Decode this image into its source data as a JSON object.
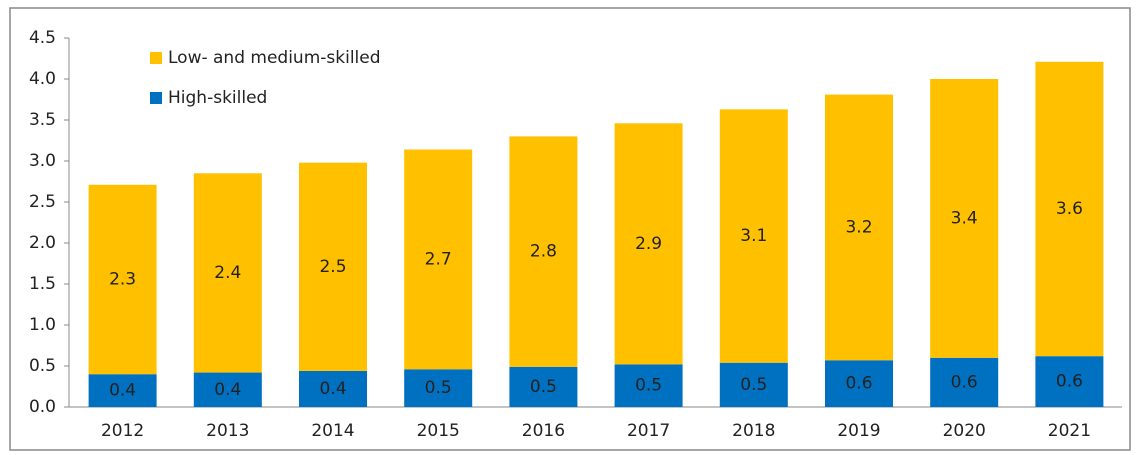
{
  "chart_data": {
    "type": "stacked_bar",
    "categories": [
      "2012",
      "2013",
      "2014",
      "2015",
      "2016",
      "2017",
      "2018",
      "2019",
      "2020",
      "2021"
    ],
    "series": [
      {
        "name": "High-skilled",
        "color": "#0070c0",
        "values": [
          0.4,
          0.42,
          0.44,
          0.46,
          0.49,
          0.52,
          0.54,
          0.57,
          0.6,
          0.62
        ],
        "value_labels": [
          "0.4",
          "0.4",
          "0.4",
          "0.5",
          "0.5",
          "0.5",
          "0.5",
          "0.6",
          "0.6",
          "0.6"
        ]
      },
      {
        "name": "Low- and medium-skilled",
        "color": "#ffc000",
        "values": [
          2.31,
          2.43,
          2.54,
          2.68,
          2.81,
          2.94,
          3.09,
          3.24,
          3.4,
          3.59
        ],
        "value_labels": [
          "2.3",
          "2.4",
          "2.5",
          "2.7",
          "2.8",
          "2.9",
          "3.1",
          "3.2",
          "3.4",
          "3.6"
        ]
      }
    ],
    "ylim": [
      0,
      4.5
    ],
    "yticks": [
      {
        "value": 0,
        "label": "0.0"
      },
      0.5,
      {
        "value": 1,
        "label": "1.0"
      },
      1.5,
      {
        "value": 2,
        "label": "2.0"
      },
      2.5,
      {
        "value": 3,
        "label": "3.0"
      },
      3.5,
      {
        "value": 4,
        "label": "4.0"
      },
      4.5
    ],
    "legend": "top-left"
  }
}
